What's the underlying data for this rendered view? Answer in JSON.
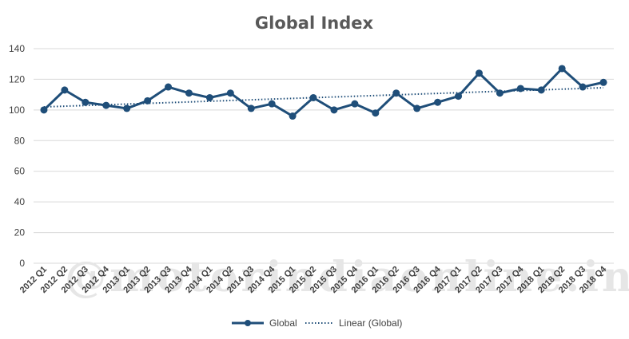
{
  "watermark": "@motorindiaonline.in",
  "chart_data": {
    "type": "line",
    "title": "Global Index",
    "xlabel": "",
    "ylabel": "",
    "ylim": [
      0,
      140
    ],
    "yticks": [
      0,
      20,
      40,
      60,
      80,
      100,
      120,
      140
    ],
    "grid": true,
    "legend": "bottom",
    "categories": [
      "2012 Q1",
      "2012 Q2",
      "2012 Q3",
      "2012 Q4",
      "2013 Q1",
      "2013 Q2",
      "2013 Q3",
      "2013 Q4",
      "2014 Q1",
      "2014 Q2",
      "2014 Q3",
      "2014 Q4",
      "2015 Q1",
      "2015 Q2",
      "2015 Q3",
      "2015 Q4",
      "2016 Q1",
      "2016 Q2",
      "2016 Q3",
      "2016 Q4",
      "2017 Q1",
      "2017 Q2",
      "2017 Q3",
      "2017 Q4",
      "2018 Q1",
      "2018 Q2",
      "2018 Q3",
      "2018 Q4"
    ],
    "series": [
      {
        "name": "Global",
        "color": "#1f4e79",
        "values": [
          100,
          113,
          105,
          103,
          101,
          106,
          115,
          111,
          108,
          111,
          101,
          104,
          96,
          108,
          100,
          104,
          98,
          111,
          101,
          105,
          109,
          124,
          111,
          114,
          113,
          127,
          115,
          118
        ]
      }
    ],
    "trendline": {
      "name": "Linear (Global)",
      "type": "linear",
      "color": "#1f4e79",
      "start": 102,
      "end": 114.5
    }
  }
}
